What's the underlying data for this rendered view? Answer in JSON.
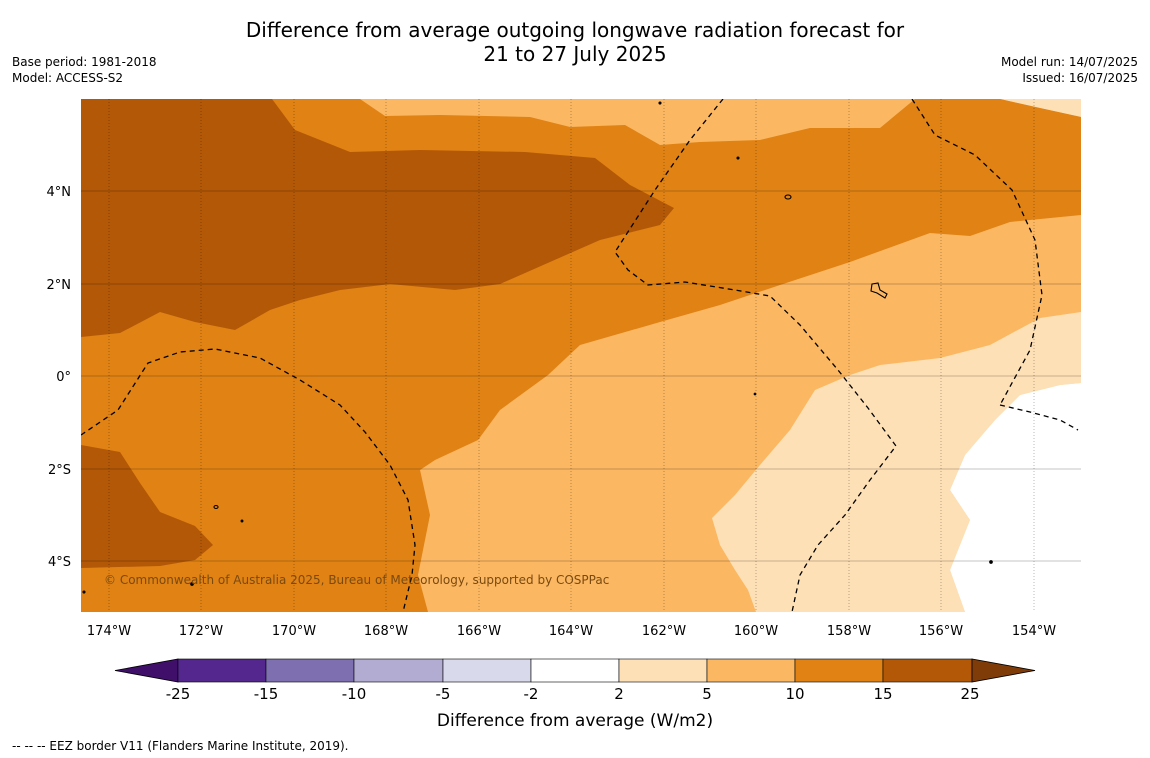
{
  "title": {
    "line1": "Difference from average outgoing longwave radiation forecast for",
    "line2": "21 to 27 July 2025"
  },
  "meta_left": {
    "base_period": "Base period: 1981-2018",
    "model": "Model: ACCESS-S2"
  },
  "meta_right": {
    "model_run": "Model run: 14/07/2025",
    "issued": "Issued: 16/07/2025"
  },
  "credit": "© Commonwealth of Australia 2025, Bureau of Meteorology, supported by COSPPac",
  "x_ticks": [
    "174°W",
    "172°W",
    "170°W",
    "168°W",
    "166°W",
    "164°W",
    "162°W",
    "160°W",
    "158°W",
    "156°W",
    "154°W"
  ],
  "y_ticks": [
    "4°N",
    "2°N",
    "0°",
    "2°S",
    "4°S"
  ],
  "colorbar": {
    "title": "Difference from average (W/m2)",
    "ticks": [
      "-25",
      "-15",
      "-10",
      "-5",
      "-2",
      "2",
      "5",
      "10",
      "15",
      "25"
    ],
    "colors": [
      "#3f0f6a",
      "#54278f",
      "#7d6fb0",
      "#b2abd2",
      "#d8daeb",
      "#ffffff",
      "#fee0b6",
      "#fbb761",
      "#e08214",
      "#b35806",
      "#7f3b08"
    ]
  },
  "footer": "--  --  -- EEZ border V11 (Flanders Marine Institute, 2019).",
  "map_colors": {
    "c5_10": "#fbb761",
    "c10_15": "#e08214",
    "c15_25": "#b35806",
    "c2_5": "#fee0b6",
    "c_neutral": "#ffffff"
  }
}
